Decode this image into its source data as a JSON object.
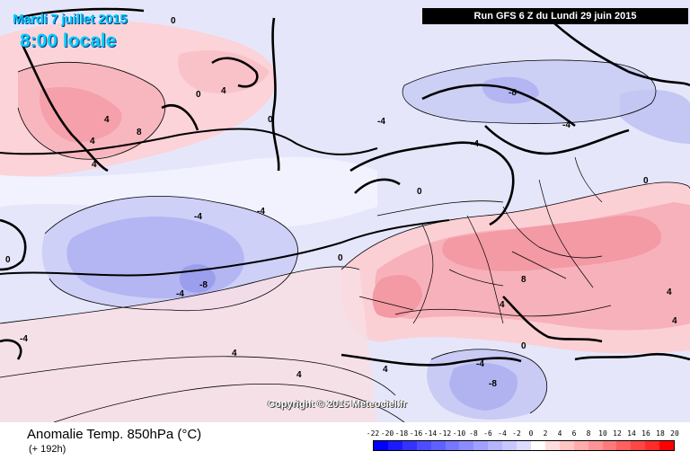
{
  "header": {
    "date": "Mardi 7 juillet 2015",
    "time": "8:00 locale",
    "run": "Run GFS 6 Z du Lundi 29 juin 2015"
  },
  "copyright": "Copyright © 2015 Meteociel.fr",
  "legend": {
    "title": "Anomalie Temp. 850hPa (°C)",
    "lead": "(+ 192h)",
    "scale_labels": [
      "-22",
      "-20",
      "-18",
      "-16",
      "-14",
      "-12",
      "-10",
      "-8",
      "-6",
      "-4",
      "-2",
      "0",
      "2",
      "4",
      "6",
      "8",
      "10",
      "12",
      "14",
      "16",
      "18",
      "20"
    ],
    "scale_colors": [
      "#0000ff",
      "#1a1aff",
      "#3333ff",
      "#4d4dff",
      "#6060ff",
      "#7777ff",
      "#8c8cff",
      "#a0a0ff",
      "#b4b4ff",
      "#c8c8ff",
      "#dcdcff",
      "#ffffff",
      "#ffdcdc",
      "#ffc4c4",
      "#ffacac",
      "#ff9494",
      "#ff7a7a",
      "#ff6060",
      "#ff4646",
      "#ff2c2c",
      "#ff0000"
    ]
  },
  "contour_labels": {
    "neg8": "-8",
    "neg4": "-4",
    "zero": "0",
    "pos4": "4",
    "pos8": "8"
  }
}
